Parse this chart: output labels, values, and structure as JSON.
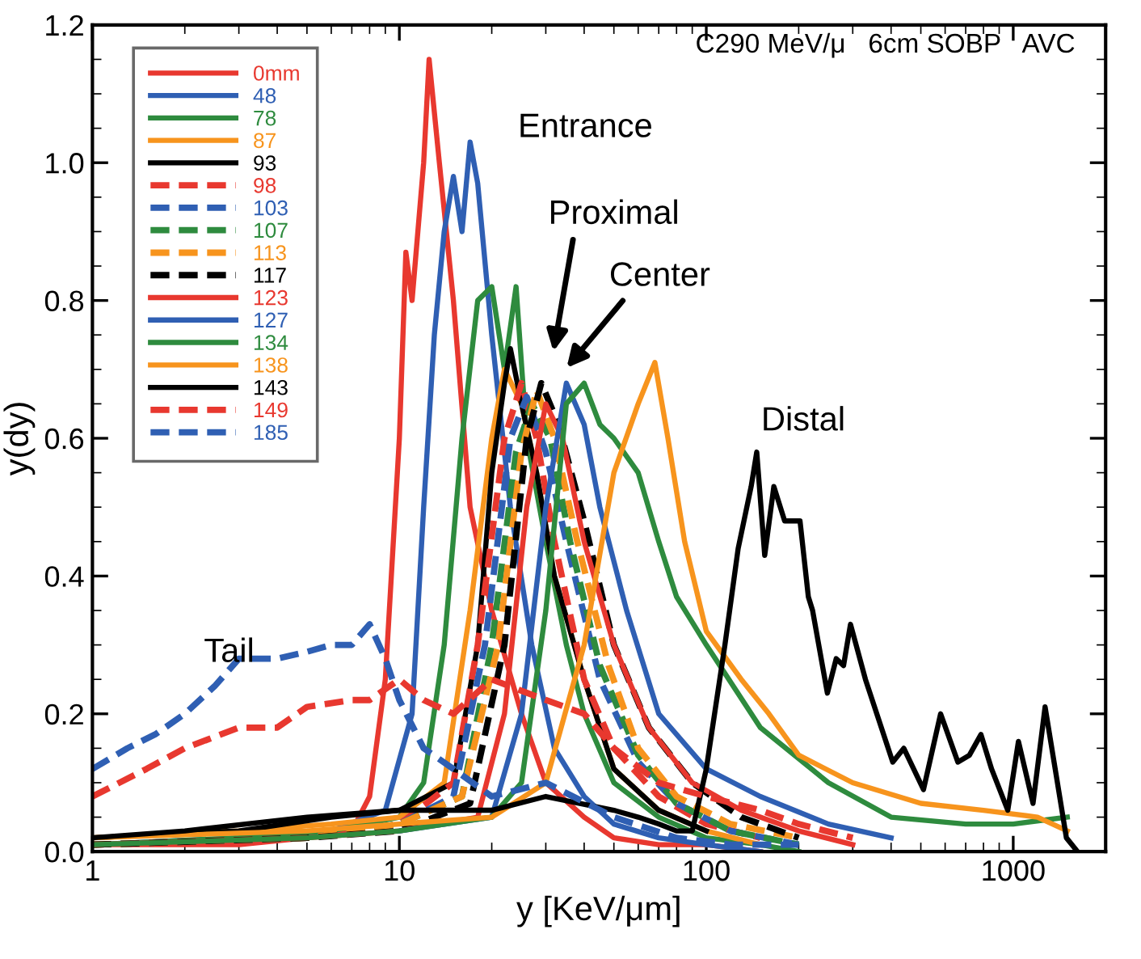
{
  "chart_data": {
    "type": "line",
    "xlabel": "y [KeV/μm]",
    "ylabel": "y(dy)",
    "log": "x",
    "xlim": [
      1,
      2000
    ],
    "xticks": [
      1,
      10,
      100,
      1000
    ],
    "ylim": [
      0,
      1.2
    ],
    "yticks": [
      {
        "value": 0,
        "label": "0.0"
      },
      0.2,
      0.4,
      0.6,
      0.8,
      {
        "value": 1,
        "label": "1.0"
      },
      1.2
    ],
    "grid": false,
    "legend": "top left",
    "marker": "none",
    "annotations": [
      "C290 MeV/μ   6cm SOBP   AVC",
      "Entrance",
      "Proximal",
      "Center",
      "Distal",
      "Tail"
    ],
    "series": [
      {
        "name": "0mm",
        "color": "#e8382f",
        "line_style": "solid",
        "x": [
          1,
          2,
          3,
          5,
          7,
          8,
          9,
          10,
          10.5,
          11,
          12,
          12.5,
          13.5,
          15,
          17,
          20,
          25,
          30,
          40,
          50,
          70,
          100,
          150
        ],
        "values": [
          0.01,
          0.01,
          0.01,
          0.02,
          0.03,
          0.08,
          0.25,
          0.6,
          0.87,
          0.8,
          1.0,
          1.15,
          1.0,
          0.8,
          0.5,
          0.35,
          0.2,
          0.1,
          0.05,
          0.02,
          0.01,
          0.01,
          0.0
        ]
      },
      {
        "name": "48",
        "color": "#2f5fb3",
        "line_style": "solid",
        "x": [
          1,
          3,
          6,
          9,
          11,
          12,
          13,
          14,
          15,
          16,
          17,
          18,
          20,
          23,
          27,
          32,
          40,
          50,
          70,
          100,
          150
        ],
        "values": [
          0.01,
          0.02,
          0.03,
          0.06,
          0.2,
          0.5,
          0.75,
          0.9,
          0.98,
          0.9,
          1.03,
          0.97,
          0.75,
          0.5,
          0.3,
          0.15,
          0.08,
          0.04,
          0.02,
          0.01,
          0.0
        ]
      },
      {
        "name": "78",
        "color": "#2e8b3e",
        "line_style": "solid",
        "x": [
          1,
          3,
          6,
          10,
          12,
          14,
          16,
          18,
          20,
          22,
          24,
          26,
          30,
          35,
          40,
          50,
          70,
          100,
          150,
          200
        ],
        "values": [
          0.01,
          0.02,
          0.03,
          0.05,
          0.1,
          0.3,
          0.6,
          0.8,
          0.82,
          0.7,
          0.82,
          0.6,
          0.45,
          0.3,
          0.2,
          0.1,
          0.05,
          0.02,
          0.01,
          0.0
        ]
      },
      {
        "name": "87",
        "color": "#f7941d",
        "line_style": "solid",
        "x": [
          1,
          3,
          6,
          10,
          14,
          17,
          20,
          22,
          25,
          28,
          32,
          40,
          50,
          70,
          100,
          150
        ],
        "values": [
          0.02,
          0.03,
          0.04,
          0.05,
          0.1,
          0.35,
          0.6,
          0.7,
          0.65,
          0.55,
          0.4,
          0.25,
          0.12,
          0.06,
          0.03,
          0.01
        ]
      },
      {
        "name": "93",
        "color": "#000000",
        "line_style": "solid",
        "x": [
          1,
          3,
          6,
          10,
          15,
          18,
          20,
          22,
          23,
          25,
          28,
          32,
          40,
          50,
          70,
          100
        ],
        "values": [
          0.02,
          0.03,
          0.05,
          0.06,
          0.1,
          0.3,
          0.55,
          0.68,
          0.73,
          0.65,
          0.55,
          0.4,
          0.25,
          0.12,
          0.06,
          0.03
        ]
      },
      {
        "name": "98",
        "color": "#e8382f",
        "line_style": "dashed",
        "x": [
          1,
          5,
          10,
          15,
          18,
          22,
          25,
          28,
          32,
          40,
          50,
          70,
          100,
          150
        ],
        "values": [
          0.01,
          0.02,
          0.04,
          0.1,
          0.3,
          0.6,
          0.68,
          0.6,
          0.45,
          0.25,
          0.15,
          0.08,
          0.04,
          0.02
        ]
      },
      {
        "name": "103",
        "color": "#2f5fb3",
        "line_style": "dashed",
        "x": [
          1,
          5,
          10,
          15,
          19,
          23,
          26,
          30,
          35,
          45,
          60,
          80,
          120,
          200
        ],
        "values": [
          0.01,
          0.02,
          0.04,
          0.08,
          0.3,
          0.6,
          0.66,
          0.58,
          0.45,
          0.25,
          0.13,
          0.07,
          0.03,
          0.01
        ]
      },
      {
        "name": "107",
        "color": "#2e8b3e",
        "line_style": "dashed",
        "x": [
          1,
          5,
          10,
          16,
          20,
          24,
          27,
          31,
          36,
          45,
          60,
          80,
          120,
          200
        ],
        "values": [
          0.01,
          0.02,
          0.04,
          0.08,
          0.3,
          0.58,
          0.65,
          0.6,
          0.45,
          0.27,
          0.14,
          0.07,
          0.03,
          0.01
        ]
      },
      {
        "name": "113",
        "color": "#f7941d",
        "line_style": "dashed",
        "x": [
          1,
          5,
          10,
          16,
          21,
          25,
          28,
          32,
          38,
          48,
          60,
          80,
          120,
          200
        ],
        "values": [
          0.01,
          0.02,
          0.04,
          0.08,
          0.3,
          0.58,
          0.67,
          0.6,
          0.45,
          0.27,
          0.15,
          0.08,
          0.04,
          0.02
        ]
      },
      {
        "name": "117",
        "color": "#000000",
        "line_style": "dashed",
        "x": [
          1,
          5,
          10,
          17,
          22,
          26,
          29,
          33,
          40,
          50,
          65,
          90,
          130,
          200
        ],
        "values": [
          0.01,
          0.02,
          0.03,
          0.07,
          0.3,
          0.6,
          0.68,
          0.62,
          0.48,
          0.3,
          0.18,
          0.1,
          0.05,
          0.02
        ]
      },
      {
        "name": "123",
        "color": "#e8382f",
        "line_style": "solid",
        "x": [
          1,
          5,
          10,
          18,
          22,
          26,
          30,
          34,
          40,
          50,
          65,
          90,
          130,
          200,
          300
        ],
        "values": [
          0.01,
          0.02,
          0.03,
          0.05,
          0.2,
          0.5,
          0.65,
          0.6,
          0.45,
          0.3,
          0.18,
          0.1,
          0.06,
          0.03,
          0.01
        ]
      },
      {
        "name": "127",
        "color": "#2f5fb3",
        "line_style": "solid",
        "x": [
          10,
          20,
          25,
          30,
          35,
          40,
          45,
          55,
          70,
          100,
          150,
          250,
          400
        ],
        "values": [
          0.03,
          0.05,
          0.2,
          0.5,
          0.68,
          0.62,
          0.5,
          0.35,
          0.2,
          0.12,
          0.08,
          0.04,
          0.02
        ]
      },
      {
        "name": "134",
        "color": "#2e8b3e",
        "line_style": "solid",
        "x": [
          1,
          5,
          10,
          20,
          25,
          30,
          35,
          40,
          45,
          50,
          60,
          70,
          80,
          100,
          150,
          250,
          400,
          700,
          1000,
          1500
        ],
        "values": [
          0.01,
          0.02,
          0.03,
          0.05,
          0.1,
          0.35,
          0.65,
          0.68,
          0.62,
          0.6,
          0.55,
          0.45,
          0.37,
          0.3,
          0.18,
          0.1,
          0.05,
          0.04,
          0.04,
          0.05
        ]
      },
      {
        "name": "138",
        "color": "#f7941d",
        "line_style": "solid",
        "x": [
          1,
          5,
          10,
          20,
          30,
          40,
          50,
          60,
          68,
          75,
          85,
          100,
          130,
          160,
          200,
          300,
          500,
          800,
          1200,
          1500
        ],
        "values": [
          0.02,
          0.03,
          0.04,
          0.05,
          0.1,
          0.3,
          0.55,
          0.65,
          0.71,
          0.6,
          0.45,
          0.32,
          0.25,
          0.2,
          0.14,
          0.1,
          0.07,
          0.06,
          0.05,
          0.03
        ]
      },
      {
        "name": "143",
        "color": "#000000",
        "line_style": "solid",
        "x": [
          1,
          2,
          5,
          10,
          20,
          30,
          50,
          60,
          70,
          80,
          90,
          100,
          115,
          127,
          140,
          146,
          155,
          166,
          180,
          202,
          215,
          222,
          248,
          265,
          280,
          295,
          330,
          405,
          440,
          510,
          580,
          660,
          720,
          785,
          850,
          960,
          1040,
          1160,
          1270,
          1490,
          1620
        ],
        "values": [
          0.02,
          0.03,
          0.05,
          0.06,
          0.06,
          0.08,
          0.06,
          0.05,
          0.04,
          0.03,
          0.03,
          0.12,
          0.3,
          0.44,
          0.53,
          0.58,
          0.43,
          0.53,
          0.48,
          0.48,
          0.37,
          0.35,
          0.23,
          0.28,
          0.27,
          0.33,
          0.25,
          0.13,
          0.15,
          0.09,
          0.2,
          0.13,
          0.14,
          0.17,
          0.12,
          0.06,
          0.16,
          0.07,
          0.21,
          0.02,
          0.0
        ]
      },
      {
        "name": "149",
        "color": "#e8382f",
        "line_style": "dashed",
        "x": [
          1,
          1.5,
          2,
          3,
          4,
          5,
          7,
          8,
          10,
          12,
          15,
          20,
          30,
          40,
          50,
          70,
          100,
          150,
          200,
          300
        ],
        "values": [
          0.08,
          0.12,
          0.15,
          0.18,
          0.18,
          0.21,
          0.22,
          0.22,
          0.25,
          0.22,
          0.2,
          0.25,
          0.22,
          0.2,
          0.15,
          0.1,
          0.08,
          0.06,
          0.04,
          0.02
        ]
      },
      {
        "name": "185",
        "color": "#2f5fb3",
        "line_style": "dashed",
        "x": [
          1,
          1.3,
          1.6,
          2,
          2.5,
          3,
          4,
          5,
          6,
          7,
          8,
          9,
          10,
          12,
          15,
          20,
          30,
          50,
          80,
          120,
          200
        ],
        "values": [
          0.12,
          0.15,
          0.17,
          0.2,
          0.24,
          0.28,
          0.28,
          0.29,
          0.3,
          0.3,
          0.33,
          0.28,
          0.22,
          0.15,
          0.12,
          0.08,
          0.1,
          0.05,
          0.02,
          0.01,
          0.01
        ]
      }
    ]
  }
}
